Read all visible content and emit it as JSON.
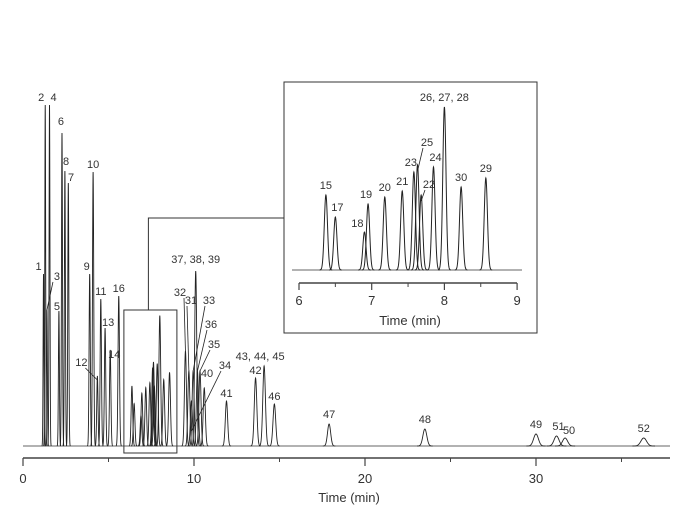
{
  "chart_data": {
    "type": "line",
    "title": "",
    "xlabel": "Time (min)",
    "ylabel": "",
    "xlim": [
      0,
      38
    ],
    "xticks": [
      "0",
      "10",
      "20",
      "30"
    ],
    "grid": false,
    "peaks": [
      {
        "label": "1",
        "time": 1.2,
        "height": 172
      },
      {
        "label": "2",
        "time": 1.3,
        "height": 341
      },
      {
        "label": "3",
        "time": 1.4,
        "height": 136
      },
      {
        "label": "4",
        "time": 1.55,
        "height": 341
      },
      {
        "label": "5",
        "time": 2.1,
        "height": 135
      },
      {
        "label": "6",
        "time": 2.28,
        "height": 313
      },
      {
        "label": "8",
        "time": 2.45,
        "height": 275
      },
      {
        "label": "7",
        "time": 2.65,
        "height": 263
      },
      {
        "label": "9",
        "time": 3.9,
        "height": 172
      },
      {
        "label": "10",
        "time": 4.1,
        "height": 274
      },
      {
        "label": "12",
        "time": 4.35,
        "height": 70
      },
      {
        "label": "11",
        "time": 4.55,
        "height": 147
      },
      {
        "label": "13",
        "time": 4.8,
        "height": 118
      },
      {
        "label": "14",
        "time": 5.1,
        "height": 96
      },
      {
        "label": "16",
        "time": 5.6,
        "height": 150
      },
      {
        "label": "32",
        "time": 9.5,
        "height": 95
      },
      {
        "label": "31",
        "time": 9.7,
        "height": 75
      },
      {
        "label": "34",
        "time": 9.85,
        "height": 45
      },
      {
        "label": "33",
        "time": 9.95,
        "height": 75
      },
      {
        "label": "37, 38, 39",
        "time": 10.1,
        "height": 175
      },
      {
        "label": "36",
        "time": 10.2,
        "height": 75
      },
      {
        "label": "35",
        "time": 10.35,
        "height": 75
      },
      {
        "label": "40",
        "time": 10.6,
        "height": 58
      },
      {
        "label": "41",
        "time": 11.9,
        "height": 45
      },
      {
        "label": "42",
        "time": 13.6,
        "height": 68
      },
      {
        "label": "43, 44, 45",
        "time": 14.1,
        "height": 80
      },
      {
        "label": "46",
        "time": 14.7,
        "height": 42
      },
      {
        "label": "47",
        "time": 17.9,
        "height": 22
      },
      {
        "label": "48",
        "time": 23.5,
        "height": 17
      },
      {
        "label": "49",
        "time": 30.0,
        "height": 12
      },
      {
        "label": "51",
        "time": 31.2,
        "height": 10
      },
      {
        "label": "50",
        "time": 31.7,
        "height": 8
      },
      {
        "label": "52",
        "time": 36.3,
        "height": 8
      }
    ],
    "inset": {
      "xlabel": "Time (min)",
      "xlim": [
        6,
        9
      ],
      "xticks": [
        "6",
        "7",
        "8",
        "9"
      ],
      "zoom_region": [
        5.9,
        9.0
      ],
      "peaks": [
        {
          "label": "15",
          "time": 6.37,
          "height": 75
        },
        {
          "label": "17",
          "time": 6.5,
          "height": 53
        },
        {
          "label": "18",
          "time": 6.9,
          "height": 38
        },
        {
          "label": "19",
          "time": 6.95,
          "height": 66
        },
        {
          "label": "20",
          "time": 7.18,
          "height": 73
        },
        {
          "label": "21",
          "time": 7.42,
          "height": 79
        },
        {
          "label": "23",
          "time": 7.58,
          "height": 98
        },
        {
          "label": "25",
          "time": 7.63,
          "height": 105
        },
        {
          "label": "22",
          "time": 7.68,
          "height": 75
        },
        {
          "label": "24",
          "time": 7.85,
          "height": 103
        },
        {
          "label": "26, 27, 28",
          "time": 8.0,
          "height": 163
        },
        {
          "label": "30",
          "time": 8.23,
          "height": 83
        },
        {
          "label": "29",
          "time": 8.57,
          "height": 92
        }
      ]
    }
  }
}
